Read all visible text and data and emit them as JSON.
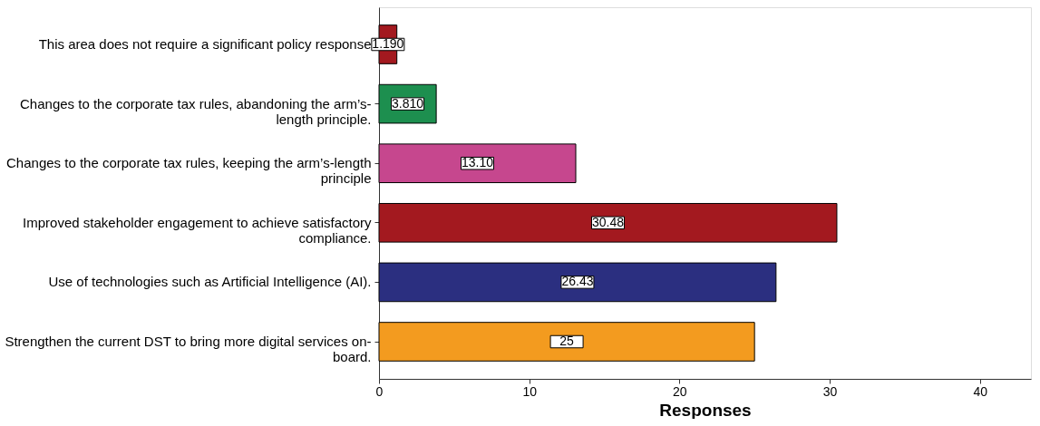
{
  "chart_data": {
    "type": "bar",
    "orientation": "horizontal",
    "xlabel": "Responses",
    "categories": [
      "This area does not require a significant policy response",
      "Changes to the corporate tax rules, abandoning the arm’s-\nlength principle.",
      "Changes to the corporate tax rules, keeping the arm’s-length\nprinciple",
      "Improved stakeholder engagement to achieve satisfactory\ncompliance.",
      "Use of technologies such as Artificial Intelligence (AI).",
      "Strengthen the current DST to bring more digital services on-\nboard."
    ],
    "values": [
      1.19,
      3.81,
      13.1,
      30.48,
      26.43,
      25
    ],
    "value_labels": [
      "1.190",
      "3.810",
      "13.10",
      "30.48",
      "26.43",
      "25"
    ],
    "colors": [
      "#a3191f",
      "#1d8f4f",
      "#c6478e",
      "#a3191f",
      "#2b2f80",
      "#f39b1f"
    ],
    "xlim": [
      0,
      43.4
    ],
    "xticks": [
      0,
      10,
      20,
      30,
      40
    ],
    "grid": false,
    "legend": false
  }
}
